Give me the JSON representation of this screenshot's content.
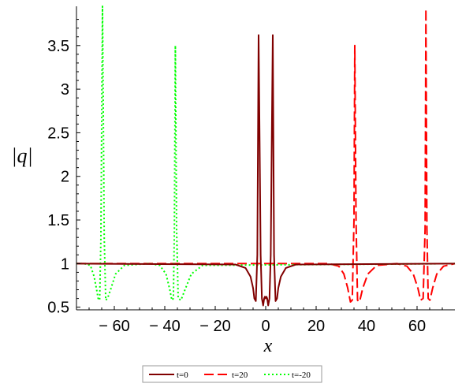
{
  "chart_data": {
    "type": "line",
    "title": "",
    "xlabel": "x",
    "ylabel": "|q|",
    "xlim": [
      -75,
      75
    ],
    "ylim": [
      0.47,
      3.95
    ],
    "x_ticks": [
      {
        "v": -60,
        "label": "− 60"
      },
      {
        "v": -40,
        "label": "− 40"
      },
      {
        "v": -20,
        "label": "− 20"
      },
      {
        "v": 0,
        "label": "0"
      },
      {
        "v": 20,
        "label": "20"
      },
      {
        "v": 40,
        "label": "40"
      },
      {
        "v": 60,
        "label": "60"
      }
    ],
    "y_ticks": [
      {
        "v": 0.5,
        "label": "0.5"
      },
      {
        "v": 1,
        "label": "1"
      },
      {
        "v": 1.5,
        "label": "1.5"
      },
      {
        "v": 2,
        "label": "2"
      },
      {
        "v": 2.5,
        "label": "2.5"
      },
      {
        "v": 3,
        "label": "3"
      },
      {
        "v": 3.5,
        "label": "3.5"
      }
    ],
    "grid": false,
    "legend_position": "bottom-center",
    "series": [
      {
        "name": "t=0",
        "color": "#800000",
        "dash": "solid",
        "x": [
          -75,
          -12,
          -8,
          -6,
          -5,
          -4.5,
          -3.9,
          -3.3,
          -2.8,
          -2.4,
          -2.0,
          -1.5,
          -1.0,
          -0.6,
          -0.3,
          0,
          0.3,
          0.6,
          1.0,
          1.5,
          2.0,
          2.4,
          2.8,
          3.3,
          3.9,
          4.5,
          5,
          6,
          8,
          12,
          75
        ],
        "y": [
          1.0,
          0.99,
          0.95,
          0.85,
          0.72,
          0.6,
          0.57,
          1.1,
          3.62,
          2.4,
          1.1,
          0.6,
          0.52,
          0.6,
          0.62,
          0.6,
          0.62,
          0.6,
          0.52,
          0.6,
          1.1,
          2.4,
          3.62,
          1.1,
          0.57,
          0.6,
          0.72,
          0.85,
          0.95,
          0.99,
          1.0
        ]
      },
      {
        "name": "t=20",
        "color": "#ff0000",
        "dash": "dashed",
        "x": [
          -75,
          25,
          29,
          31,
          32.5,
          33.6,
          34.3,
          35.0,
          35.3,
          35.8,
          36.4,
          37.2,
          38.5,
          40.5,
          44,
          52,
          56,
          58.5,
          60.3,
          61.4,
          62.4,
          63.2,
          63.5,
          63.9,
          64.4,
          65.1,
          66.2,
          67.8,
          70.5,
          75
        ],
        "y": [
          1.0,
          1.0,
          0.97,
          0.88,
          0.72,
          0.56,
          0.58,
          1.5,
          3.5,
          1.5,
          0.58,
          0.56,
          0.72,
          0.88,
          0.98,
          1.0,
          0.97,
          0.88,
          0.72,
          0.58,
          0.6,
          1.4,
          3.92,
          1.4,
          0.6,
          0.58,
          0.72,
          0.88,
          0.97,
          1.0
        ]
      },
      {
        "name": "t=-20",
        "color": "#00ff00",
        "dash": "dotted",
        "x": [
          -75,
          -72,
          -69.5,
          -68,
          -67,
          -66.4,
          -65.8,
          -65.3,
          -64.7,
          -64.0,
          -63.4,
          -62.7,
          -61.5,
          -59.5,
          -56,
          -46,
          -42,
          -39.5,
          -38.0,
          -37.2,
          -36.6,
          -36.2,
          -35.8,
          -35.3,
          -34.7,
          -33.6,
          -32.0,
          -29.5,
          -25,
          75
        ],
        "y": [
          1.0,
          1.0,
          0.98,
          0.85,
          0.7,
          0.6,
          0.58,
          1.3,
          3.95,
          1.3,
          0.58,
          0.6,
          0.7,
          0.88,
          0.98,
          1.0,
          0.98,
          0.88,
          0.7,
          0.58,
          0.6,
          1.4,
          3.5,
          1.4,
          0.6,
          0.58,
          0.7,
          0.88,
          0.98,
          1.0
        ]
      }
    ]
  }
}
